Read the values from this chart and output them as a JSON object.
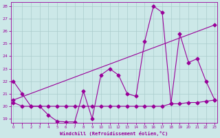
{
  "xlabel": "Windchill (Refroidissement éolien,°C)",
  "bg_color": "#cce8e8",
  "line_color": "#990099",
  "grid_color": "#aacccc",
  "ylim": [
    19,
    28
  ],
  "xlim": [
    0,
    23
  ],
  "yticks": [
    19,
    20,
    21,
    22,
    23,
    24,
    25,
    26,
    27,
    28
  ],
  "xticks": [
    0,
    1,
    2,
    3,
    4,
    5,
    6,
    7,
    8,
    9,
    10,
    11,
    12,
    13,
    14,
    15,
    16,
    17,
    18,
    19,
    20,
    21,
    22,
    23
  ],
  "series1_x": [
    0,
    1,
    2,
    3,
    4,
    5,
    6,
    7,
    8,
    9,
    10,
    11,
    12,
    13,
    14,
    15,
    16,
    17,
    18,
    19,
    20,
    21,
    22,
    23
  ],
  "series1_y": [
    22.0,
    21.0,
    20.0,
    20.0,
    19.3,
    18.8,
    18.75,
    18.75,
    21.2,
    19.0,
    22.5,
    23.0,
    22.5,
    21.0,
    20.8,
    25.2,
    28.0,
    27.5,
    20.2,
    25.8,
    23.5,
    23.8,
    22.0,
    20.5
  ],
  "series2_x": [
    0,
    1,
    2,
    3,
    4,
    5,
    6,
    7,
    8,
    9,
    10,
    11,
    12,
    13,
    14,
    15,
    16,
    17,
    18,
    19,
    20,
    21,
    22,
    23
  ],
  "series2_y": [
    20.3,
    20.0,
    20.0,
    20.0,
    20.0,
    20.0,
    20.0,
    20.0,
    20.0,
    20.0,
    20.0,
    20.0,
    20.0,
    20.0,
    20.0,
    20.0,
    20.0,
    20.0,
    20.2,
    20.2,
    20.3,
    20.3,
    20.4,
    20.5
  ],
  "series3_x": [
    0,
    23
  ],
  "series3_y": [
    20.5,
    26.5
  ],
  "marker": "D",
  "markersize": 2.5,
  "linewidth": 0.8
}
